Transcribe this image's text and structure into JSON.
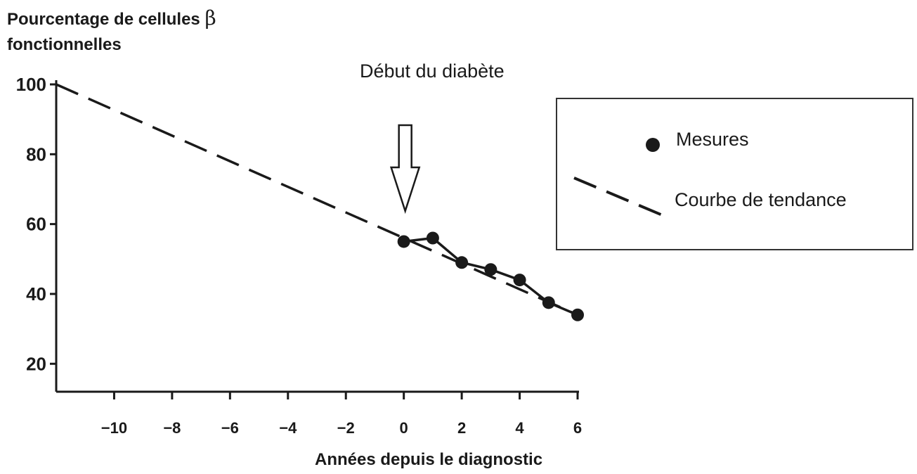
{
  "chart_data": {
    "type": "line",
    "ylabel_line1": "Pourcentage de cellules ",
    "ylabel_beta": "β",
    "ylabel_line2": "fonctionnelles",
    "xlabel": "Années depuis le diagnostic",
    "annotation": "Début du diabète",
    "xlim": [
      -12,
      6
    ],
    "ylim": [
      12,
      100
    ],
    "x_ticks": [
      -10,
      -8,
      -6,
      -4,
      -2,
      0,
      2,
      4,
      6
    ],
    "x_tick_labels": [
      "−10",
      "−8",
      "−6",
      "−4",
      "−2",
      "0",
      "2",
      "4",
      "6"
    ],
    "y_ticks": [
      20,
      40,
      60,
      80,
      100
    ],
    "y_tick_labels": [
      "20",
      "40",
      "60",
      "80",
      "100"
    ],
    "series": [
      {
        "name": "Mesures",
        "style": "markers-line",
        "x": [
          0,
          1,
          2,
          3,
          4,
          5,
          6
        ],
        "y": [
          55,
          56,
          49,
          47,
          44,
          37.5,
          34
        ]
      },
      {
        "name": "Courbe de tendance",
        "style": "dashed",
        "x": [
          -12,
          6
        ],
        "y": [
          100,
          34
        ]
      }
    ],
    "annotation_x": 0,
    "legend_position": "right",
    "grid": false,
    "colors": {
      "ink": "#1a1a1a",
      "background": "#ffffff"
    }
  }
}
